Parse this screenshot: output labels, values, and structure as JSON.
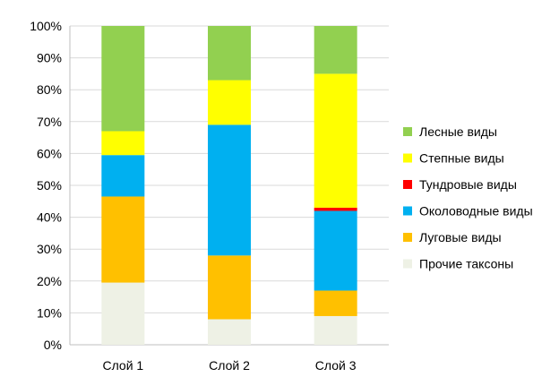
{
  "chart_data": {
    "type": "bar",
    "stacked": "percent",
    "title": "",
    "xlabel": "",
    "ylabel": "",
    "ylim": [
      0,
      100
    ],
    "y_ticks": [
      "0%",
      "10%",
      "20%",
      "30%",
      "40%",
      "50%",
      "60%",
      "70%",
      "80%",
      "90%",
      "100%"
    ],
    "grid": true,
    "legend_position": "right",
    "categories": [
      "Слой 1",
      "Слой 2",
      "Слой 3"
    ],
    "series": [
      {
        "name": "Прочие таксоны",
        "color": "#eef1e5",
        "values": [
          19.5,
          8,
          9
        ]
      },
      {
        "name": "Луговые виды",
        "color": "#ffc000",
        "values": [
          27,
          20,
          8
        ]
      },
      {
        "name": "Околоводные виды",
        "color": "#00b0f0",
        "values": [
          13,
          41,
          25
        ]
      },
      {
        "name": "Тундровые виды",
        "color": "#ff0000",
        "values": [
          0,
          0,
          1
        ]
      },
      {
        "name": "Степные виды",
        "color": "#ffff00",
        "values": [
          7.5,
          14,
          42
        ]
      },
      {
        "name": "Лесные виды",
        "color": "#92d050",
        "values": [
          33,
          17,
          15
        ]
      }
    ],
    "legend_order": [
      "Лесные виды",
      "Степные виды",
      "Тундровые виды",
      "Околоводные виды",
      "Луговые виды",
      "Прочие таксоны"
    ]
  }
}
